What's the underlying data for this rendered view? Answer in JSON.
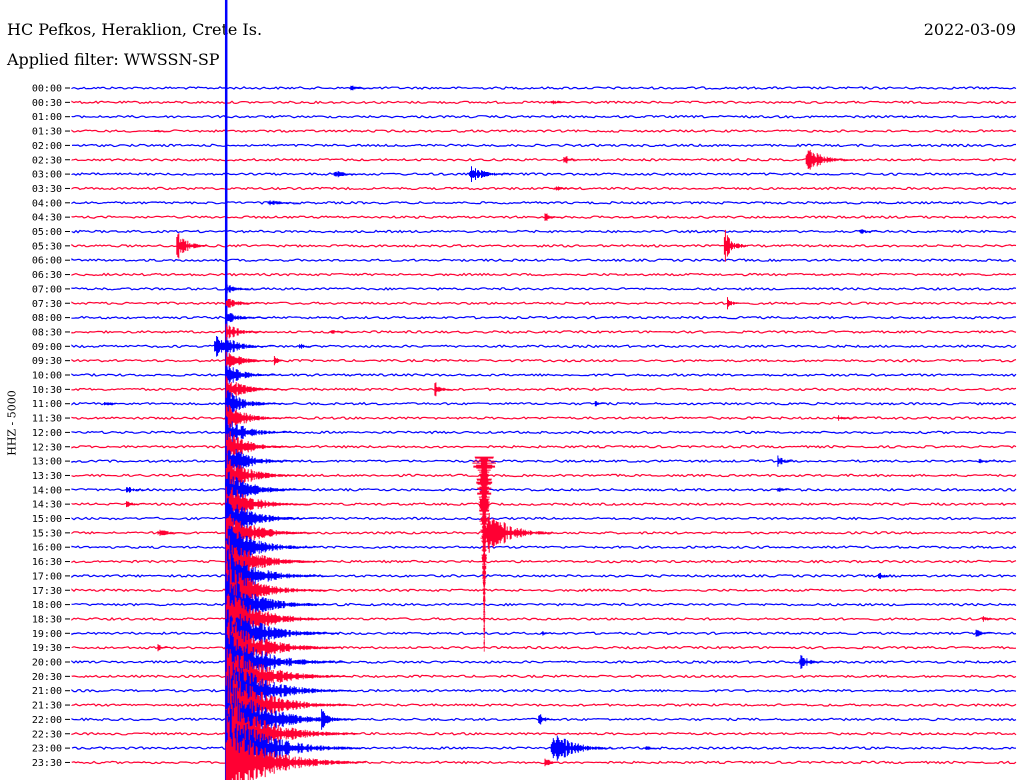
{
  "header": {
    "station": "HC Pefkos, Heraklion, Crete Is.",
    "filter": "Applied filter: WWSSN-SP",
    "date": "2022-03-09",
    "channel": "HHZ - 5000"
  },
  "colors": {
    "a": "#0000ff",
    "b": "#ff0033",
    "text": "#000000"
  },
  "chart_data": {
    "type": "line",
    "title": "HC Pefkos, Heraklion, Crete Is.",
    "subtitle": "Applied filter: WWSSN-SP",
    "date": "2022-03-09",
    "ylabel": "HHZ - 5000",
    "row_interval_minutes": 30,
    "row_labels": [
      "00:00",
      "00:30",
      "01:00",
      "01:30",
      "02:00",
      "02:30",
      "03:00",
      "03:30",
      "04:00",
      "04:30",
      "05:00",
      "05:30",
      "06:00",
      "06:30",
      "07:00",
      "07:30",
      "08:00",
      "08:30",
      "09:00",
      "09:30",
      "10:00",
      "10:30",
      "11:00",
      "11:30",
      "12:00",
      "12:30",
      "13:00",
      "13:30",
      "14:00",
      "14:30",
      "15:00",
      "15:30",
      "16:00",
      "16:30",
      "17:00",
      "17:30",
      "18:00",
      "18:30",
      "19:00",
      "19:30",
      "20:00",
      "20:30",
      "21:00",
      "21:30",
      "22:00",
      "22:30",
      "23:00",
      "23:30"
    ],
    "row_colors": [
      "a",
      "b"
    ],
    "events": [
      {
        "row": "00:00",
        "minute": 8.8,
        "amp": 0.5,
        "dur": 0.8
      },
      {
        "row": "00:30",
        "minute": 15.2,
        "amp": 0.4,
        "dur": 0.8
      },
      {
        "row": "01:30",
        "minute": 2.6,
        "amp": 0.4,
        "dur": 0.5
      },
      {
        "row": "02:30",
        "minute": 15.6,
        "amp": 0.9,
        "dur": 0.6
      },
      {
        "row": "02:30",
        "minute": 23.3,
        "amp": 1.8,
        "dur": 1.5
      },
      {
        "row": "03:00",
        "minute": 8.3,
        "amp": 0.7,
        "dur": 1.0
      },
      {
        "row": "03:00",
        "minute": 12.6,
        "amp": 1.2,
        "dur": 1.4
      },
      {
        "row": "03:30",
        "minute": 15.3,
        "amp": 0.4,
        "dur": 1.0
      },
      {
        "row": "04:00",
        "minute": 6.2,
        "amp": 0.5,
        "dur": 1.2
      },
      {
        "row": "04:30",
        "minute": 15.0,
        "amp": 0.7,
        "dur": 0.6
      },
      {
        "row": "05:00",
        "minute": 25.0,
        "amp": 0.5,
        "dur": 0.6
      },
      {
        "row": "05:30",
        "minute": 3.3,
        "amp": 2.2,
        "dur": 1.0
      },
      {
        "row": "05:30",
        "minute": 20.7,
        "amp": 2.6,
        "dur": 0.8
      },
      {
        "row": "07:30",
        "minute": 20.8,
        "amp": 0.9,
        "dur": 0.5
      },
      {
        "row": "08:30",
        "minute": 8.2,
        "amp": 0.4,
        "dur": 0.8
      },
      {
        "row": "09:00",
        "minute": 4.5,
        "amp": 1.6,
        "dur": 1.2
      },
      {
        "row": "09:00",
        "minute": 7.2,
        "amp": 0.6,
        "dur": 0.5
      },
      {
        "row": "09:30",
        "minute": 6.4,
        "amp": 0.8,
        "dur": 0.4
      },
      {
        "row": "10:30",
        "minute": 11.5,
        "amp": 1.2,
        "dur": 0.6
      },
      {
        "row": "11:00",
        "minute": 1.0,
        "amp": 0.4,
        "dur": 0.8
      },
      {
        "row": "11:00",
        "minute": 16.6,
        "amp": 0.5,
        "dur": 0.4
      },
      {
        "row": "11:30",
        "minute": 24.3,
        "amp": 0.4,
        "dur": 0.8
      },
      {
        "row": "13:00",
        "minute": 22.4,
        "amp": 1.1,
        "dur": 0.6
      },
      {
        "row": "13:00",
        "minute": 28.8,
        "amp": 0.4,
        "dur": 0.8
      },
      {
        "row": "14:00",
        "minute": 1.7,
        "amp": 0.6,
        "dur": 0.8
      },
      {
        "row": "14:00",
        "minute": 22.4,
        "amp": 0.5,
        "dur": 0.5
      },
      {
        "row": "14:30",
        "minute": 1.7,
        "amp": 0.5,
        "dur": 0.6
      },
      {
        "row": "15:30",
        "minute": 13.1,
        "amp": 3.2,
        "dur": 2.2
      },
      {
        "row": "15:30",
        "minute": 2.7,
        "amp": 0.5,
        "dur": 1.2
      },
      {
        "row": "17:00",
        "minute": 25.6,
        "amp": 0.6,
        "dur": 0.6
      },
      {
        "row": "18:30",
        "minute": 28.9,
        "amp": 0.5,
        "dur": 0.6
      },
      {
        "row": "19:00",
        "minute": 28.7,
        "amp": 0.7,
        "dur": 0.6
      },
      {
        "row": "19:00",
        "minute": 14.9,
        "amp": 0.4,
        "dur": 0.5
      },
      {
        "row": "19:30",
        "minute": 2.7,
        "amp": 0.5,
        "dur": 0.5
      },
      {
        "row": "20:00",
        "minute": 23.1,
        "amp": 1.3,
        "dur": 0.8
      },
      {
        "row": "22:00",
        "minute": 5.2,
        "amp": 2.4,
        "dur": 2.5
      },
      {
        "row": "22:00",
        "minute": 7.9,
        "amp": 2.0,
        "dur": 0.8
      },
      {
        "row": "22:00",
        "minute": 14.8,
        "amp": 1.4,
        "dur": 0.6
      },
      {
        "row": "23:00",
        "minute": 15.2,
        "amp": 2.4,
        "dur": 2.0
      },
      {
        "row": "23:00",
        "minute": 18.2,
        "amp": 0.5,
        "dur": 0.5
      },
      {
        "row": "23:30",
        "minute": 6.3,
        "amp": 0.8,
        "dur": 0.6
      },
      {
        "row": "23:30",
        "minute": 15.0,
        "amp": 0.9,
        "dur": 0.5
      }
    ],
    "long_traces": [
      {
        "start_row": "00:00",
        "end_row": "23:30",
        "minute": 4.9,
        "color": "a",
        "note": "vertical line"
      },
      {
        "start_row": "13:00",
        "end_row": "19:30",
        "minute": 13.1,
        "color": "b"
      }
    ]
  }
}
